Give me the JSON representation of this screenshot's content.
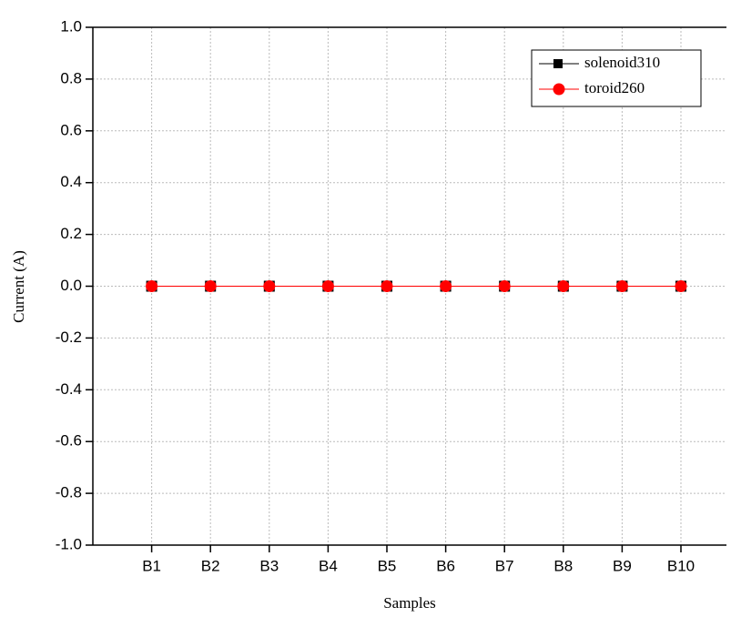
{
  "chart_data": {
    "type": "line",
    "x_label": "Samples",
    "y_label": "Current (A)",
    "categories": [
      "B1",
      "B2",
      "B3",
      "B4",
      "B5",
      "B6",
      "B7",
      "B8",
      "B9",
      "B10"
    ],
    "series": [
      {
        "name": "solenoid310",
        "color": "#000000",
        "marker": "square",
        "values": [
          0,
          0,
          0,
          0,
          0,
          0,
          0,
          0,
          0,
          0
        ]
      },
      {
        "name": "toroid260",
        "color": "#ff0000",
        "marker": "circle",
        "values": [
          0,
          0,
          0,
          0,
          0,
          0,
          0,
          0,
          0,
          0
        ]
      }
    ],
    "ylim": [
      -1,
      1
    ],
    "yticks": [
      {
        "value": -1,
        "label": "-1.0"
      },
      -0.8,
      -0.6,
      -0.4,
      -0.2,
      {
        "value": 0,
        "label": "0.0"
      },
      0.2,
      0.4,
      0.6,
      0.8,
      {
        "value": 1,
        "label": "1.0"
      }
    ],
    "grid": true,
    "legend": "top-right"
  }
}
